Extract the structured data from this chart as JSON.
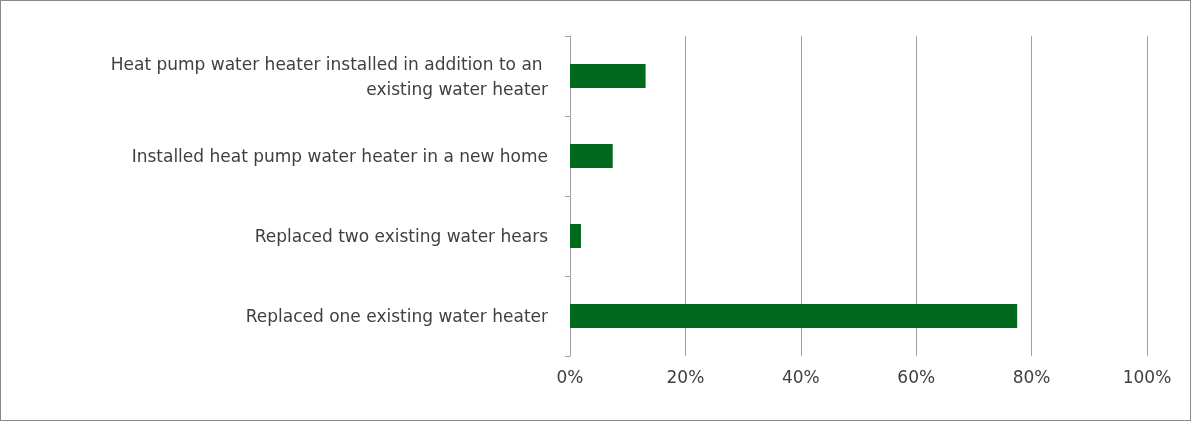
{
  "chart_data": {
    "type": "bar",
    "orientation": "horizontal",
    "categories": [
      "Heat pump water heater installed in addition to an existing water heater",
      "Installed heat pump water heater in a new home",
      "Replaced two existing water hears",
      "Replaced one existing water heater"
    ],
    "values": [
      13.1,
      7.4,
      1.9,
      77.5
    ],
    "color": "#00691e",
    "xlim": [
      0,
      100
    ],
    "xticks": [
      {
        "value": 0,
        "label": "0%"
      },
      {
        "value": 20,
        "label": "20%"
      },
      {
        "value": 40,
        "label": "40%"
      },
      {
        "value": 60,
        "label": "60%"
      },
      {
        "value": 80,
        "label": "80%"
      },
      {
        "value": 100,
        "label": "100%"
      }
    ],
    "grid": "x"
  }
}
